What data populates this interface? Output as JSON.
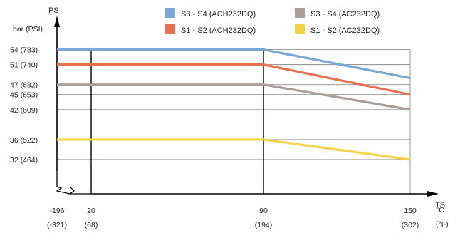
{
  "chart_data": {
    "type": "line",
    "title": "",
    "ylabel_top": "PS",
    "ylabel_unit": "bar (PSI)",
    "xlabel": "TS",
    "x_unit_c": "°C",
    "x_unit_f": "(°F)",
    "x_ticks": [
      {
        "c": -196,
        "label": "-196",
        "sub": "(-321)"
      },
      {
        "c": 20,
        "label": "20",
        "sub": "(68)"
      },
      {
        "c": 90,
        "label": "90",
        "sub": "(194)"
      },
      {
        "c": 150,
        "label": "150",
        "sub": "(302)"
      }
    ],
    "y_ticks": [
      {
        "v": 32,
        "label": "32  (464)"
      },
      {
        "v": 36,
        "label": "36  (522)"
      },
      {
        "v": 42,
        "label": "42  (609)"
      },
      {
        "v": 45,
        "label": "45  (653)"
      },
      {
        "v": 47,
        "label": "47  (682)"
      },
      {
        "v": 51,
        "label": "51  (740)"
      },
      {
        "v": 54,
        "label": "54  (783)"
      }
    ],
    "grid": true,
    "legend_position": "top-right",
    "series": [
      {
        "name": "S3 - S4    (ACH232DQ)",
        "color": "#79a7d8",
        "points": [
          [
            -196,
            54
          ],
          [
            90,
            54
          ],
          [
            150,
            48.3
          ]
        ]
      },
      {
        "name": "S1 - S2    (ACH232DQ)",
        "color": "#e8704f",
        "points": [
          [
            -196,
            51
          ],
          [
            90,
            51
          ],
          [
            150,
            45
          ]
        ]
      },
      {
        "name": "S3 - S4    (AC232DQ)",
        "color": "#a99e98",
        "points": [
          [
            -196,
            47
          ],
          [
            90,
            47
          ],
          [
            150,
            42
          ]
        ]
      },
      {
        "name": "S1 - S2    (AC232DQ)",
        "color": "#f6d24a",
        "points": [
          [
            -196,
            36
          ],
          [
            90,
            36
          ],
          [
            150,
            32
          ]
        ]
      }
    ]
  }
}
